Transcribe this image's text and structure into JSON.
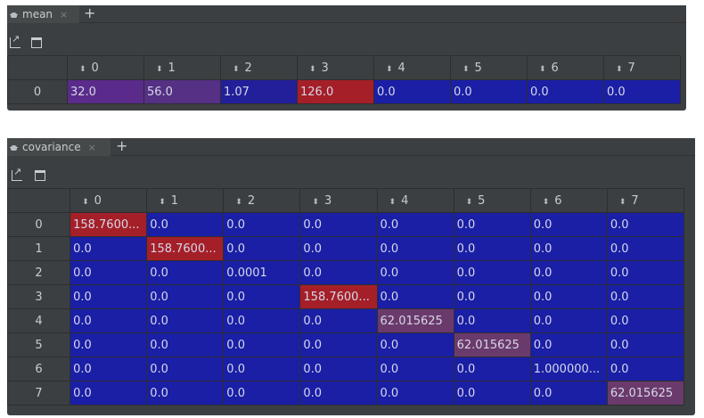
{
  "mean": {
    "tab_label": "mean",
    "tab_close": "×",
    "tab_add": "+",
    "columns": [
      "0",
      "1",
      "2",
      "3",
      "4",
      "5",
      "6",
      "7"
    ],
    "rows": [
      {
        "index": "0",
        "cells": [
          "32.0",
          "56.0",
          "1.07",
          "126.0",
          "0.0",
          "0.0",
          "0.0",
          "0.0"
        ]
      }
    ]
  },
  "covariance": {
    "tab_label": "covariance",
    "tab_close": "×",
    "tab_add": "+",
    "columns": [
      "0",
      "1",
      "2",
      "3",
      "4",
      "5",
      "6",
      "7"
    ],
    "rows": [
      {
        "index": "0",
        "cells": [
          "158.7600...",
          "0.0",
          "0.0",
          "0.0",
          "0.0",
          "0.0",
          "0.0",
          "0.0"
        ]
      },
      {
        "index": "1",
        "cells": [
          "0.0",
          "158.7600...",
          "0.0",
          "0.0",
          "0.0",
          "0.0",
          "0.0",
          "0.0"
        ]
      },
      {
        "index": "2",
        "cells": [
          "0.0",
          "0.0",
          "0.0001",
          "0.0",
          "0.0",
          "0.0",
          "0.0",
          "0.0"
        ]
      },
      {
        "index": "3",
        "cells": [
          "0.0",
          "0.0",
          "0.0",
          "158.7600...",
          "0.0",
          "0.0",
          "0.0",
          "0.0"
        ]
      },
      {
        "index": "4",
        "cells": [
          "0.0",
          "0.0",
          "0.0",
          "0.0",
          "62.015625",
          "0.0",
          "0.0",
          "0.0"
        ]
      },
      {
        "index": "5",
        "cells": [
          "0.0",
          "0.0",
          "0.0",
          "0.0",
          "0.0",
          "62.015625",
          "0.0",
          "0.0"
        ]
      },
      {
        "index": "6",
        "cells": [
          "0.0",
          "0.0",
          "0.0",
          "0.0",
          "0.0",
          "0.0",
          "1.000000...",
          "0.0"
        ]
      },
      {
        "index": "7",
        "cells": [
          "0.0",
          "0.0",
          "0.0",
          "0.0",
          "0.0",
          "0.0",
          "0.0",
          "62.015625"
        ]
      }
    ]
  },
  "icons": {
    "tab": "bug-icon",
    "open": "open-in-new-window-icon",
    "window": "window-icon",
    "sort": "sort-arrows-icon"
  },
  "colors": {
    "cell_low": "#1a1fa6",
    "cell_high": "#a51f28",
    "cell_mid": "#5a2b8a",
    "panel_bg": "#3c3f41"
  }
}
